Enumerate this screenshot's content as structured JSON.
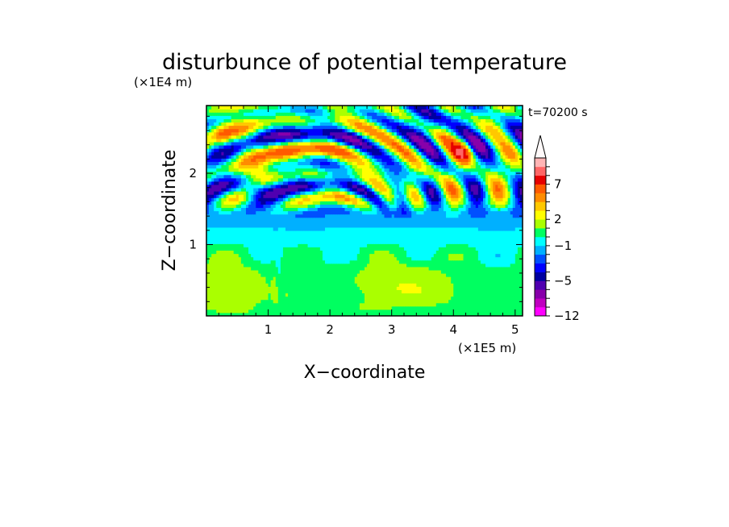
{
  "chart_data": {
    "type": "heatmap",
    "title": "disturbunce of potential temperature",
    "time_label": "t=70200 s",
    "xlabel": "X−coordinate",
    "ylabel": "Z−coordinate",
    "x_unit": "(×1E5 m)",
    "y_unit": "(×1E4 m)",
    "xlim": [
      0,
      5.12
    ],
    "ylim": [
      0,
      2.95
    ],
    "x_ticks": [
      {
        "value": 1,
        "label": "1"
      },
      {
        "value": 2,
        "label": "2"
      },
      {
        "value": 3,
        "label": "3"
      },
      {
        "value": 4,
        "label": "4"
      },
      {
        "value": 5,
        "label": "5"
      }
    ],
    "y_ticks": [
      {
        "value": 1,
        "label": "1"
      },
      {
        "value": 2,
        "label": "2"
      }
    ],
    "colorbar": {
      "levels": [
        -12,
        -10,
        -8,
        -6,
        -5,
        -4,
        -3,
        -2,
        -1,
        0,
        1,
        2,
        3,
        4,
        5,
        7,
        9,
        11
      ],
      "colors": [
        "#ff00ff",
        "#c000c0",
        "#8800aa",
        "#5000b0",
        "#0000a0",
        "#0000ff",
        "#0050ff",
        "#00b0ff",
        "#00ffff",
        "#00ff60",
        "#aaff00",
        "#ffff00",
        "#ffc800",
        "#ff8c00",
        "#ff5a00",
        "#e60000",
        "#ff6666",
        "#ffb4b4"
      ],
      "labels": [
        {
          "value": -12,
          "label": "−12"
        },
        {
          "value": -5,
          "label": "−5"
        },
        {
          "value": -1,
          "label": "−1"
        },
        {
          "value": 2,
          "label": "2"
        },
        {
          "value": 7,
          "label": "7"
        }
      ],
      "extend": "max"
    },
    "grid": false,
    "legend": "right"
  }
}
